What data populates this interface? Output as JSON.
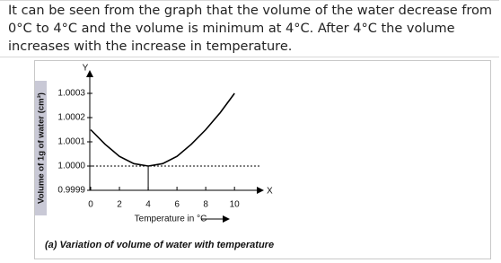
{
  "text": {
    "lines": [
      "It can be seen from the graph that the volume of the water decrease from",
      "0°C to 4°C and the volume is minimum at 4°C. After 4°C the volume",
      "increases with the increase in temperature."
    ]
  },
  "chart_data": {
    "type": "line",
    "ylabel": "Volume of 1g of water (cm³)",
    "xlabel": "Temperature in °C",
    "y_axis_letter": "Y",
    "x_axis_letter": "X",
    "caption": "(a) Variation of volume of water with temperature",
    "x": [
      0,
      1,
      2,
      3,
      4,
      5,
      6,
      7,
      8,
      9,
      10
    ],
    "values": [
      1.00015,
      1.00009,
      1.00004,
      1.00001,
      1.0,
      1.00001,
      1.00004,
      1.00009,
      1.00015,
      1.00022,
      1.0003
    ],
    "color": "#000000",
    "xlim": [
      0,
      11.8
    ],
    "xticks": [
      0,
      2,
      4,
      6,
      8,
      10
    ],
    "ylim": [
      0.9999,
      1.0004
    ],
    "yticks": [
      0.9999,
      {
        "value": 1,
        "label": "1.0000"
      },
      1.0001,
      1.0002,
      1.0003
    ]
  }
}
